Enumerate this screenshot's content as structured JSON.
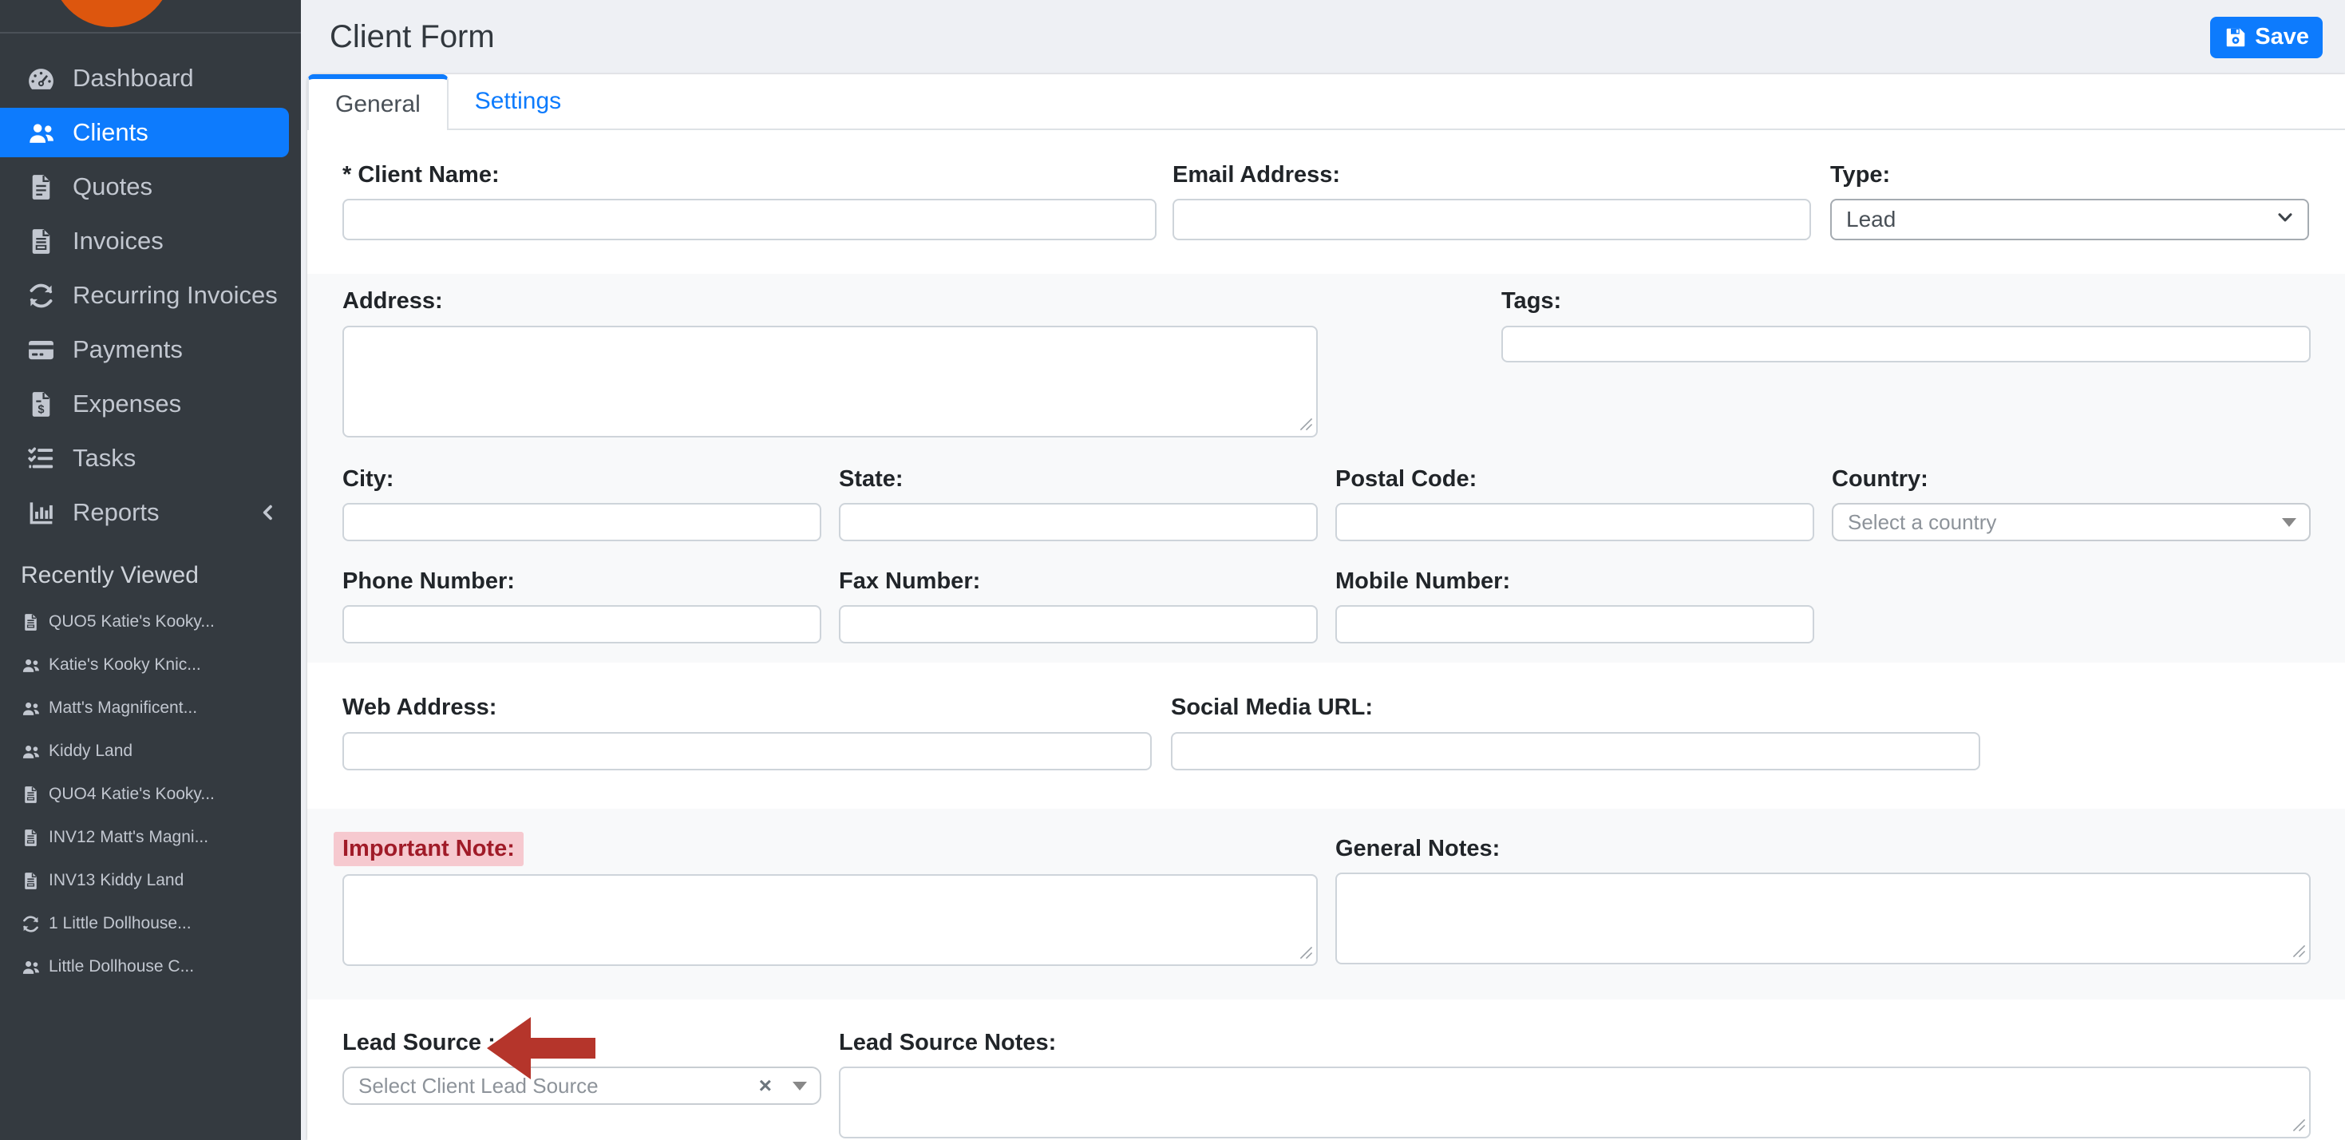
{
  "colors": {
    "accent": "#0d7bfd",
    "sidebar_bg": "#343a40",
    "sidebar_text": "#c2c7d0",
    "logo_orange": "#dd560e",
    "page_bg": "#eef0f4",
    "stripe_bg": "#f8f9fa",
    "label_text": "#212529",
    "important_label_bg": "#f6c9cf",
    "important_label_text": "#a01b28",
    "arrow_red": "#b5352b"
  },
  "sidebar": {
    "nav": [
      {
        "label": "Dashboard",
        "icon": "gauge-icon",
        "active": false
      },
      {
        "label": "Clients",
        "icon": "users-icon",
        "active": true
      },
      {
        "label": "Quotes",
        "icon": "file-icon",
        "active": false
      },
      {
        "label": "Invoices",
        "icon": "file-invoice-icon",
        "active": false
      },
      {
        "label": "Recurring Invoices",
        "icon": "sync-icon",
        "active": false
      },
      {
        "label": "Payments",
        "icon": "credit-card-icon",
        "active": false
      },
      {
        "label": "Expenses",
        "icon": "file-invoice-dollar-icon",
        "active": false
      },
      {
        "label": "Tasks",
        "icon": "tasks-icon",
        "active": false
      },
      {
        "label": "Reports",
        "icon": "chart-bar-icon",
        "active": false,
        "chevron": "chevron-left-icon"
      }
    ],
    "recently_viewed": {
      "heading": "Recently Viewed",
      "items": [
        {
          "label": "QUO5 Katie's Kooky...",
          "icon": "file-invoice-icon"
        },
        {
          "label": "Katie's Kooky Knic...",
          "icon": "users-icon"
        },
        {
          "label": "Matt's Magnificent...",
          "icon": "users-icon"
        },
        {
          "label": "Kiddy Land",
          "icon": "users-icon"
        },
        {
          "label": "QUO4 Katie's Kooky...",
          "icon": "file-invoice-icon"
        },
        {
          "label": "INV12 Matt's Magni...",
          "icon": "file-invoice-icon"
        },
        {
          "label": "INV13 Kiddy Land",
          "icon": "file-invoice-icon"
        },
        {
          "label": "1 Little Dollhouse...",
          "icon": "sync-icon"
        },
        {
          "label": "Little Dollhouse C...",
          "icon": "users-icon"
        }
      ]
    }
  },
  "header": {
    "title": "Client Form",
    "save_label": "Save",
    "save_icon": "floppy-icon"
  },
  "tabs": [
    {
      "label": "General",
      "active": true
    },
    {
      "label": "Settings",
      "active": false
    }
  ],
  "form": {
    "client_name": {
      "label": "* Client Name:",
      "value": ""
    },
    "email": {
      "label": "Email Address:",
      "value": ""
    },
    "type": {
      "label": "Type:",
      "value": "Lead"
    },
    "address": {
      "label": "Address:",
      "value": ""
    },
    "tags": {
      "label": "Tags:",
      "value": ""
    },
    "city": {
      "label": "City:",
      "value": ""
    },
    "state": {
      "label": "State:",
      "value": ""
    },
    "postal_code": {
      "label": "Postal Code:",
      "value": ""
    },
    "country": {
      "label": "Country:",
      "placeholder": "Select a country"
    },
    "phone": {
      "label": "Phone Number:",
      "value": ""
    },
    "fax": {
      "label": "Fax Number:",
      "value": ""
    },
    "mobile": {
      "label": "Mobile Number:",
      "value": ""
    },
    "web": {
      "label": "Web Address:",
      "value": ""
    },
    "social": {
      "label": "Social Media URL:",
      "value": ""
    },
    "important_note": {
      "label": "Important Note:",
      "value": ""
    },
    "general_notes": {
      "label": "General Notes:",
      "value": ""
    },
    "lead_source": {
      "label": "Lead Source :",
      "placeholder": "Select Client Lead Source",
      "clear_glyph": "×"
    },
    "lead_source_notes": {
      "label": "Lead Source Notes:",
      "value": ""
    }
  }
}
